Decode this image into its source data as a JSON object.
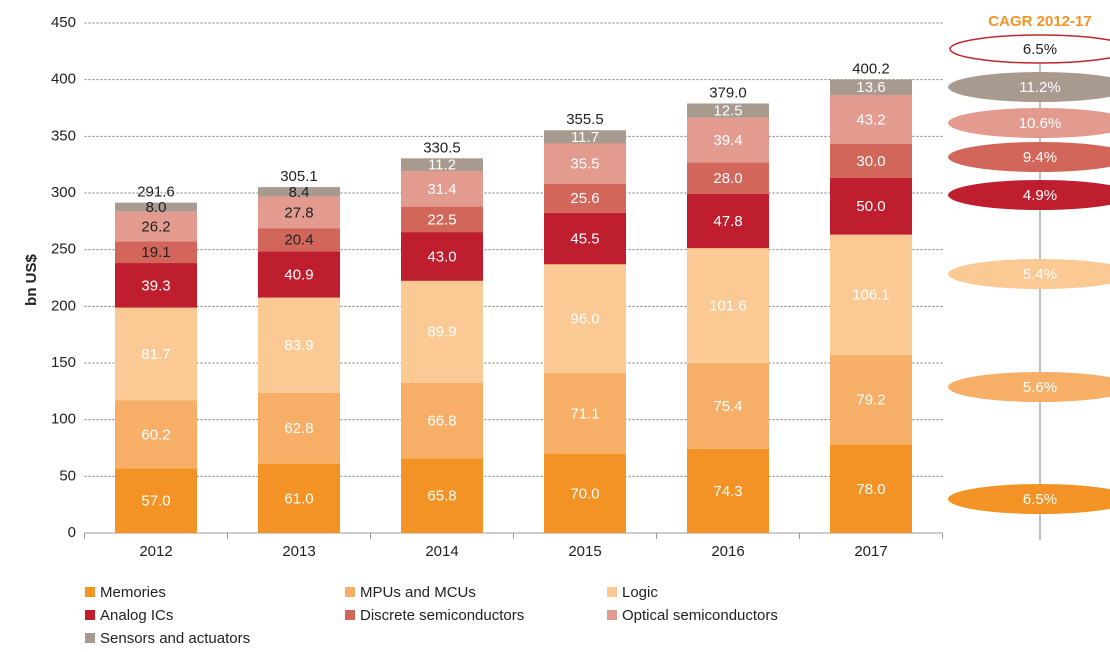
{
  "chart_data": {
    "type": "stacked_bar",
    "ylabel": "bn US$",
    "categories": [
      "2012",
      "2013",
      "2014",
      "2015",
      "2016",
      "2017"
    ],
    "ylim": [
      0,
      450
    ],
    "yticks": [
      0,
      50,
      100,
      150,
      200,
      250,
      300,
      350,
      400,
      450
    ],
    "grid": true,
    "series": [
      {
        "name": "Memories",
        "color": "#f39325",
        "values": [
          57.0,
          61.0,
          65.8,
          70.0,
          74.3,
          78.0
        ],
        "value_labels": [
          "57.0",
          "61.0",
          "65.8",
          "70.0",
          "74.3",
          "78.0"
        ],
        "cagr": 6.5,
        "cagr_label": "6.5%"
      },
      {
        "name": "MPUs and MCUs",
        "color": "#f7ae67",
        "values": [
          60.2,
          62.8,
          66.8,
          71.1,
          75.4,
          79.2
        ],
        "value_labels": [
          "60.2",
          "62.8",
          "66.8",
          "71.1",
          "75.4",
          "79.2"
        ],
        "cagr": 5.6,
        "cagr_label": "5.6%"
      },
      {
        "name": "Logic",
        "color": "#fbc994",
        "values": [
          81.7,
          83.9,
          89.9,
          96.0,
          101.6,
          106.1
        ],
        "value_labels": [
          "81.7",
          "83.9",
          "89.9",
          "96.0",
          "101.6",
          "106.1"
        ],
        "cagr": 5.4,
        "cagr_label": "5.4%"
      },
      {
        "name": "Analog ICs",
        "color": "#be1e2d",
        "values": [
          39.3,
          40.9,
          43.0,
          45.5,
          47.8,
          50.0
        ],
        "value_labels": [
          "39.3",
          "40.9",
          "43.0",
          "45.5",
          "47.8",
          "50.0"
        ],
        "cagr": 4.9,
        "cagr_label": "4.9%"
      },
      {
        "name": "Discrete semiconductors",
        "color": "#d3665a",
        "values": [
          19.1,
          20.4,
          22.5,
          25.6,
          28.0,
          30.0
        ],
        "value_labels": [
          "19.1",
          "20.4",
          "22.5",
          "25.6",
          "28.0",
          "30.0"
        ],
        "cagr": 9.4,
        "cagr_label": "9.4%"
      },
      {
        "name": "Optical semiconductors",
        "color": "#e39a8f",
        "values": [
          26.2,
          27.8,
          31.4,
          35.5,
          39.4,
          43.2
        ],
        "value_labels": [
          "26.2",
          "27.8",
          "31.4",
          "35.5",
          "39.4",
          "43.2"
        ],
        "cagr": 10.6,
        "cagr_label": "10.6%"
      },
      {
        "name": "Sensors and actuators",
        "color": "#a89a8e",
        "values": [
          8.0,
          8.4,
          11.2,
          11.7,
          12.5,
          13.6
        ],
        "value_labels": [
          "8.0",
          "8.4",
          "11.2",
          "11.7",
          "12.5",
          "13.6"
        ],
        "cagr": 11.2,
        "cagr_label": "11.2%"
      }
    ],
    "totals": [
      291.6,
      305.1,
      330.5,
      355.5,
      379.0,
      400.2
    ],
    "total_labels": [
      "291.6",
      "305.1",
      "330.5",
      "355.5",
      "379.0",
      "400.2"
    ],
    "cagr_title": "CAGR 2012-17",
    "cagr_total": 6.5,
    "cagr_total_label": "6.5%",
    "cagr_total_color": "#c0272d"
  }
}
